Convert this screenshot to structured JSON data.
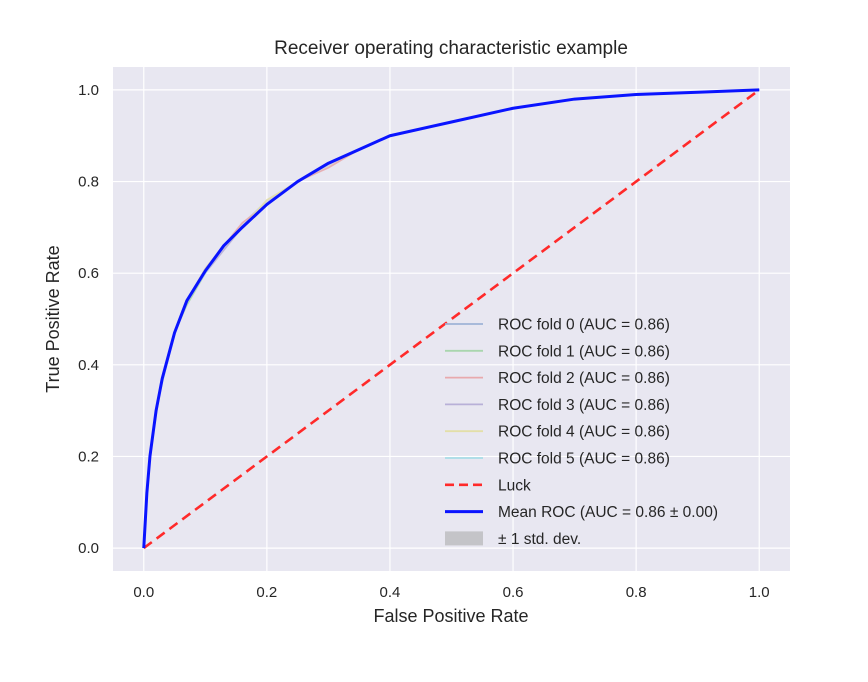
{
  "chart_data": {
    "type": "line",
    "title": "Receiver operating characteristic example",
    "xlabel": "False Positive Rate",
    "ylabel": "True Positive Rate",
    "xlim": [
      -0.05,
      1.05
    ],
    "ylim": [
      -0.05,
      1.05
    ],
    "grid": true,
    "legend_position": "lower right",
    "xticks": [
      0.0,
      0.2,
      0.4,
      0.6,
      0.8,
      1.0
    ],
    "yticks": [
      0.0,
      0.2,
      0.4,
      0.6,
      0.8,
      1.0
    ],
    "xtick_labels": [
      "0.0",
      "0.2",
      "0.4",
      "0.6",
      "0.8",
      "1.0"
    ],
    "ytick_labels": [
      "0.0",
      "0.2",
      "0.4",
      "0.6",
      "0.8",
      "1.0"
    ],
    "roc_fpr": [
      0.0,
      0.005,
      0.01,
      0.02,
      0.03,
      0.05,
      0.07,
      0.1,
      0.13,
      0.16,
      0.2,
      0.25,
      0.3,
      0.35,
      0.4,
      0.5,
      0.6,
      0.7,
      0.8,
      0.9,
      1.0
    ],
    "series": [
      {
        "name": "ROC fold 0 (AUC = 0.86)",
        "color": "#9fb3d6",
        "tpr": [
          0.0,
          0.12,
          0.2,
          0.3,
          0.37,
          0.47,
          0.54,
          0.61,
          0.66,
          0.7,
          0.75,
          0.8,
          0.84,
          0.87,
          0.9,
          0.93,
          0.96,
          0.98,
          0.99,
          0.995,
          1.0
        ]
      },
      {
        "name": "ROC fold 1 (AUC = 0.86)",
        "color": "#a9d6ae",
        "tpr": [
          0.0,
          0.13,
          0.2,
          0.3,
          0.37,
          0.47,
          0.53,
          0.6,
          0.66,
          0.7,
          0.75,
          0.8,
          0.84,
          0.87,
          0.9,
          0.93,
          0.96,
          0.98,
          0.99,
          0.995,
          1.0
        ]
      },
      {
        "name": "ROC fold 2 (AUC = 0.86)",
        "color": "#e8a9ad",
        "tpr": [
          0.0,
          0.12,
          0.2,
          0.29,
          0.37,
          0.47,
          0.54,
          0.61,
          0.66,
          0.71,
          0.75,
          0.8,
          0.83,
          0.87,
          0.9,
          0.93,
          0.96,
          0.98,
          0.99,
          0.995,
          1.0
        ]
      },
      {
        "name": "ROC fold 3 (AUC = 0.86)",
        "color": "#b8b0d8",
        "tpr": [
          0.0,
          0.12,
          0.19,
          0.3,
          0.37,
          0.47,
          0.54,
          0.6,
          0.65,
          0.7,
          0.75,
          0.8,
          0.84,
          0.87,
          0.9,
          0.93,
          0.96,
          0.98,
          0.99,
          0.995,
          1.0
        ]
      },
      {
        "name": "ROC fold 4 (AUC = 0.86)",
        "color": "#e3dfa8",
        "tpr": [
          0.0,
          0.13,
          0.2,
          0.3,
          0.37,
          0.47,
          0.54,
          0.61,
          0.66,
          0.7,
          0.76,
          0.8,
          0.84,
          0.87,
          0.9,
          0.93,
          0.96,
          0.98,
          0.99,
          0.995,
          1.0
        ]
      },
      {
        "name": "ROC fold 5 (AUC = 0.86)",
        "color": "#a8dce6",
        "tpr": [
          0.0,
          0.12,
          0.2,
          0.3,
          0.36,
          0.47,
          0.54,
          0.6,
          0.66,
          0.7,
          0.75,
          0.8,
          0.84,
          0.87,
          0.9,
          0.93,
          0.96,
          0.98,
          0.99,
          0.995,
          1.0
        ]
      }
    ],
    "luck": {
      "name": "Luck",
      "color": "#ff2a2a",
      "x": [
        0.0,
        1.0
      ],
      "y": [
        0.0,
        1.0
      ]
    },
    "mean": {
      "name": "Mean ROC (AUC = 0.86 ± 0.00)",
      "color": "#0a14ff",
      "tpr": [
        0.0,
        0.12,
        0.2,
        0.3,
        0.37,
        0.47,
        0.54,
        0.605,
        0.66,
        0.7,
        0.75,
        0.8,
        0.84,
        0.87,
        0.9,
        0.93,
        0.96,
        0.98,
        0.99,
        0.995,
        1.0
      ]
    },
    "std_band": {
      "name": "± 1 std. dev.",
      "color": "#c4c4c8"
    }
  }
}
